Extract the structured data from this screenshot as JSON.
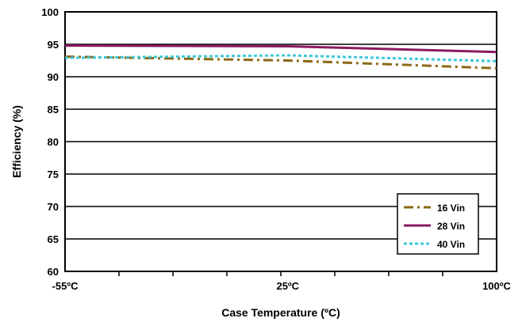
{
  "chart_data": {
    "type": "line",
    "title": "",
    "xlabel": "Case Temperature (ºC)",
    "ylabel": "Efficiency (%)",
    "x": [
      -55,
      25,
      100
    ],
    "x_tick_labels": [
      "-55ºC",
      "25ºC",
      "100ºC"
    ],
    "xlim": [
      -55,
      100
    ],
    "ylim": [
      60,
      100
    ],
    "y_ticks": [
      60,
      65,
      70,
      75,
      80,
      85,
      90,
      95,
      100
    ],
    "grid": "horizontal",
    "legend_position": "bottom-right",
    "series": [
      {
        "name": "16 Vin",
        "values": [
          93.1,
          92.5,
          91.3
        ],
        "color": "#8B6914",
        "style": "dash-dot"
      },
      {
        "name": "28 Vin",
        "values": [
          94.8,
          94.7,
          93.8
        ],
        "color": "#8B1A5E",
        "style": "solid"
      },
      {
        "name": "40 Vin",
        "values": [
          92.9,
          93.3,
          92.4
        ],
        "color": "#3FC8D8",
        "style": "dotted"
      }
    ]
  }
}
